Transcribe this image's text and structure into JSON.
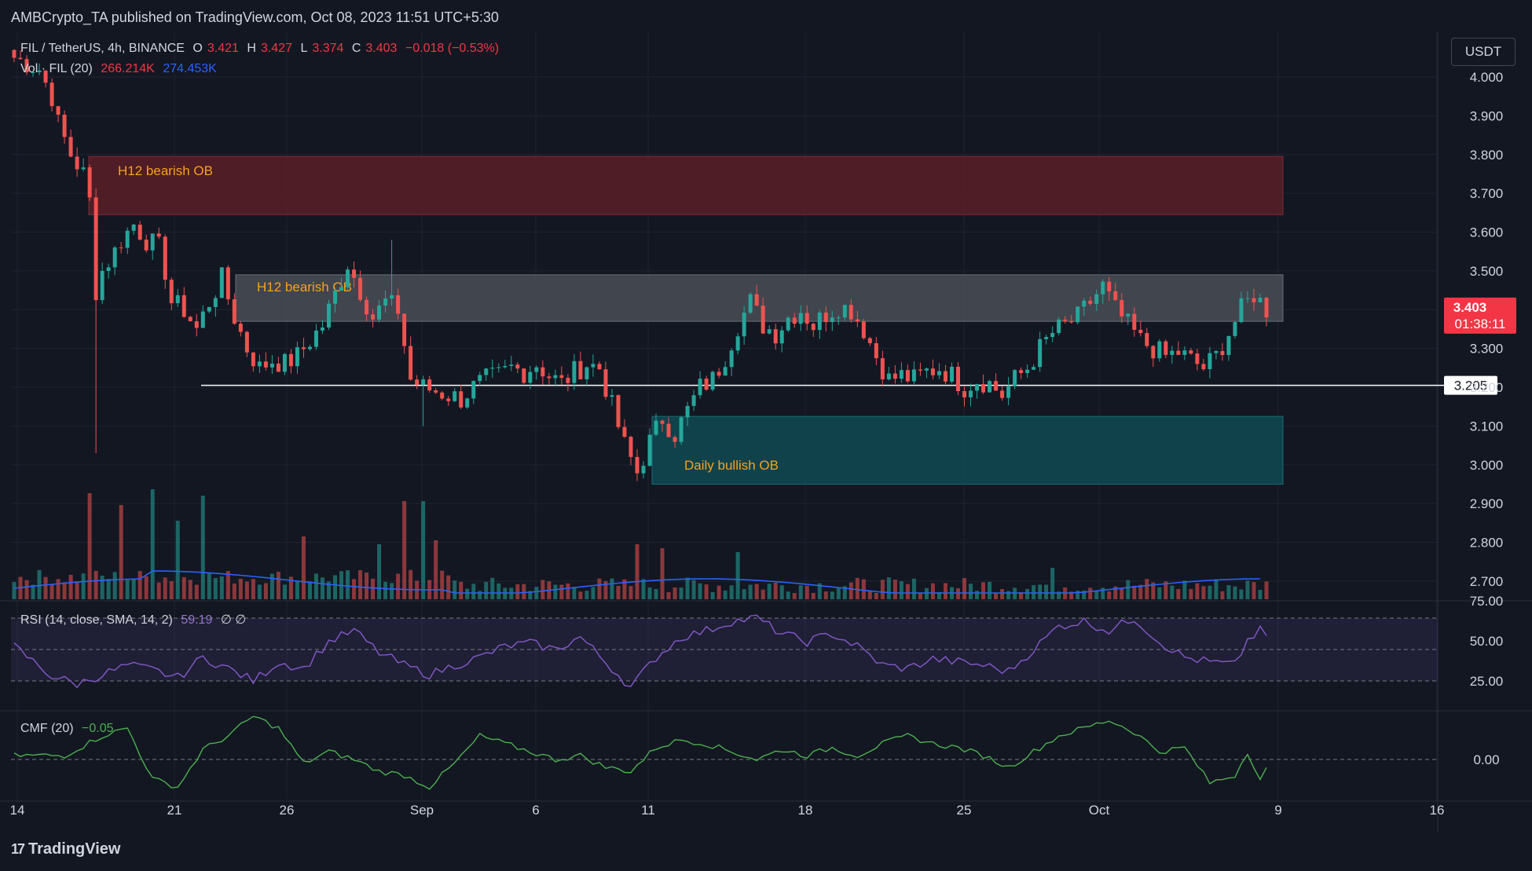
{
  "header": {
    "published": "AMBCrypto_TA published on TradingView.com, Oct 08, 2023 11:51 UTC+5:30"
  },
  "legend": {
    "symbol": "FIL / TetherUS, 4h, BINANCE",
    "o_label": "O",
    "o_value": "3.421",
    "h_label": "H",
    "h_value": "3.427",
    "l_label": "L",
    "l_value": "3.374",
    "c_label": "C",
    "c_value": "3.403",
    "change": "−0.018 (−0.53%)",
    "vol_label": "Vol · FIL (20)",
    "vol_value": "266.214K",
    "vol_ma": "274.453K",
    "rsi_label": "RSI (14, close, SMA, 14, 2)",
    "rsi_value": "59.19",
    "rsi_na": "∅  ∅",
    "cmf_label": "CMF (20)",
    "cmf_value": "−0.05"
  },
  "currency_button": "USDT",
  "footer": {
    "logo": "17",
    "brand": "TradingView"
  },
  "colors": {
    "bg": "#131722",
    "up": "#26a69a",
    "down": "#ef5350",
    "bearish_zone": "#5b1f27",
    "grey_zone": "#4a4d56",
    "bullish_zone": "#0f4a52",
    "zone_text": "#f7a21b",
    "rsi_line": "#7e57c2",
    "cmf_line": "#4caf50",
    "vol_ma": "#2962ff"
  },
  "chart_data": {
    "type": "candlestick",
    "symbol": "FIL / TetherUS",
    "timeframe": "4h",
    "exchange": "BINANCE",
    "price_axis": {
      "ticks": [
        "4.000",
        "3.900",
        "3.800",
        "3.700",
        "3.600",
        "3.500",
        "3.400",
        "3.300",
        "3.200",
        "3.100",
        "3.000",
        "2.900",
        "2.800",
        "2.700"
      ],
      "range": [
        2.65,
        4.08
      ]
    },
    "x_axis": {
      "ticks": [
        "14",
        "21",
        "26",
        "Sep",
        "6",
        "11",
        "18",
        "25",
        "Oct",
        "9",
        "16"
      ]
    },
    "last_price": {
      "value": "3.403",
      "countdown": "01:38:11"
    },
    "horizontal_line": {
      "value": 3.205,
      "label": "3.205"
    },
    "zones": [
      {
        "label": "H12 bearish OB",
        "top": 3.795,
        "bottom": 3.645,
        "type": "bearish"
      },
      {
        "label": "H12 bearish OB",
        "top": 3.49,
        "bottom": 3.37,
        "type": "grey"
      },
      {
        "label": "Daily bullish OB",
        "top": 3.125,
        "bottom": 2.95,
        "type": "bullish"
      }
    ],
    "price_path": [
      [
        0,
        4.05
      ],
      [
        4,
        4.02
      ],
      [
        6,
        3.95
      ],
      [
        7,
        3.88
      ],
      [
        9,
        3.8
      ],
      [
        11,
        3.75
      ],
      [
        12,
        3.68
      ],
      [
        13,
        3.45
      ],
      [
        14,
        3.5
      ],
      [
        16,
        3.55
      ],
      [
        17,
        3.58
      ],
      [
        19,
        3.62
      ],
      [
        21,
        3.58
      ],
      [
        23,
        3.56
      ],
      [
        24,
        3.5
      ],
      [
        25,
        3.42
      ],
      [
        27,
        3.4
      ],
      [
        29,
        3.35
      ],
      [
        31,
        3.42
      ],
      [
        33,
        3.48
      ],
      [
        35,
        3.38
      ],
      [
        37,
        3.3
      ],
      [
        39,
        3.25
      ],
      [
        41,
        3.27
      ],
      [
        43,
        3.26
      ],
      [
        45,
        3.28
      ],
      [
        47,
        3.32
      ],
      [
        49,
        3.36
      ],
      [
        51,
        3.44
      ],
      [
        53,
        3.52
      ],
      [
        55,
        3.45
      ],
      [
        57,
        3.38
      ],
      [
        59,
        3.42
      ],
      [
        61,
        3.4
      ],
      [
        63,
        3.22
      ],
      [
        65,
        3.2
      ],
      [
        67,
        3.19
      ],
      [
        69,
        3.18
      ],
      [
        71,
        3.17
      ],
      [
        73,
        3.2
      ],
      [
        75,
        3.22
      ],
      [
        77,
        3.23
      ],
      [
        79,
        3.25
      ],
      [
        81,
        3.24
      ],
      [
        83,
        3.26
      ],
      [
        85,
        3.23
      ],
      [
        87,
        3.21
      ],
      [
        89,
        3.24
      ],
      [
        91,
        3.26
      ],
      [
        93,
        3.25
      ],
      [
        95,
        3.15
      ],
      [
        97,
        3.05
      ],
      [
        99,
        2.98
      ],
      [
        101,
        3.06
      ],
      [
        103,
        3.12
      ],
      [
        105,
        3.08
      ],
      [
        107,
        3.14
      ],
      [
        109,
        3.2
      ],
      [
        111,
        3.22
      ],
      [
        113,
        3.28
      ],
      [
        115,
        3.36
      ],
      [
        117,
        3.42
      ],
      [
        119,
        3.36
      ],
      [
        121,
        3.34
      ],
      [
        123,
        3.38
      ],
      [
        125,
        3.4
      ],
      [
        127,
        3.36
      ],
      [
        129,
        3.39
      ],
      [
        131,
        3.41
      ],
      [
        133,
        3.4
      ],
      [
        135,
        3.35
      ],
      [
        137,
        3.28
      ],
      [
        139,
        3.22
      ],
      [
        141,
        3.23
      ],
      [
        143,
        3.22
      ],
      [
        145,
        3.24
      ],
      [
        147,
        3.25
      ],
      [
        149,
        3.23
      ],
      [
        151,
        3.2
      ],
      [
        153,
        3.22
      ],
      [
        155,
        3.21
      ],
      [
        157,
        3.18
      ],
      [
        159,
        3.22
      ],
      [
        161,
        3.25
      ],
      [
        163,
        3.3
      ],
      [
        165,
        3.34
      ],
      [
        167,
        3.36
      ],
      [
        169,
        3.38
      ],
      [
        171,
        3.42
      ],
      [
        173,
        3.46
      ],
      [
        175,
        3.4
      ],
      [
        177,
        3.36
      ],
      [
        179,
        3.32
      ],
      [
        181,
        3.3
      ],
      [
        183,
        3.28
      ],
      [
        185,
        3.29
      ],
      [
        187,
        3.27
      ],
      [
        189,
        3.25
      ],
      [
        191,
        3.28
      ],
      [
        193,
        3.34
      ],
      [
        195,
        3.4
      ],
      [
        197,
        3.44
      ],
      [
        198,
        3.42
      ],
      [
        199,
        3.4
      ]
    ],
    "volume": {
      "value": "266.214K",
      "ma": "274.453K"
    },
    "rsi": {
      "params": "14, close, SMA, 14, 2",
      "value": 59.19,
      "ticks": [
        "75.00",
        "50.00",
        "25.00"
      ],
      "path": [
        [
          0,
          52
        ],
        [
          6,
          33
        ],
        [
          10,
          28
        ],
        [
          14,
          34
        ],
        [
          18,
          40
        ],
        [
          22,
          37
        ],
        [
          26,
          32
        ],
        [
          30,
          45
        ],
        [
          34,
          38
        ],
        [
          38,
          30
        ],
        [
          42,
          42
        ],
        [
          46,
          38
        ],
        [
          50,
          55
        ],
        [
          54,
          62
        ],
        [
          58,
          48
        ],
        [
          62,
          40
        ],
        [
          66,
          34
        ],
        [
          70,
          40
        ],
        [
          74,
          45
        ],
        [
          78,
          52
        ],
        [
          82,
          54
        ],
        [
          86,
          50
        ],
        [
          90,
          58
        ],
        [
          94,
          42
        ],
        [
          98,
          26
        ],
        [
          102,
          45
        ],
        [
          106,
          58
        ],
        [
          110,
          62
        ],
        [
          114,
          68
        ],
        [
          118,
          70
        ],
        [
          122,
          60
        ],
        [
          126,
          55
        ],
        [
          130,
          60
        ],
        [
          134,
          52
        ],
        [
          138,
          40
        ],
        [
          142,
          38
        ],
        [
          146,
          44
        ],
        [
          150,
          42
        ],
        [
          154,
          40
        ],
        [
          158,
          36
        ],
        [
          162,
          50
        ],
        [
          166,
          65
        ],
        [
          170,
          68
        ],
        [
          174,
          62
        ],
        [
          178,
          70
        ],
        [
          182,
          55
        ],
        [
          186,
          45
        ],
        [
          190,
          42
        ],
        [
          194,
          40
        ],
        [
          196,
          56
        ],
        [
          198,
          62
        ],
        [
          199,
          59
        ]
      ]
    },
    "cmf": {
      "period": "20",
      "value": -0.05,
      "ticks": [
        "0.00"
      ],
      "path": [
        [
          0,
          0.02
        ],
        [
          8,
          0.02
        ],
        [
          14,
          0.12
        ],
        [
          18,
          0.16
        ],
        [
          22,
          -0.1
        ],
        [
          26,
          -0.14
        ],
        [
          30,
          0.05
        ],
        [
          34,
          0.12
        ],
        [
          38,
          0.22
        ],
        [
          42,
          0.16
        ],
        [
          46,
          -0.02
        ],
        [
          50,
          0.04
        ],
        [
          54,
          0.0
        ],
        [
          58,
          -0.06
        ],
        [
          62,
          -0.08
        ],
        [
          66,
          -0.14
        ],
        [
          70,
          -0.02
        ],
        [
          74,
          0.12
        ],
        [
          78,
          0.08
        ],
        [
          82,
          0.04
        ],
        [
          86,
          0.0
        ],
        [
          90,
          0.02
        ],
        [
          94,
          -0.04
        ],
        [
          98,
          -0.06
        ],
        [
          102,
          0.06
        ],
        [
          106,
          0.1
        ],
        [
          110,
          0.08
        ],
        [
          114,
          0.04
        ],
        [
          118,
          0.0
        ],
        [
          122,
          0.05
        ],
        [
          126,
          0.02
        ],
        [
          130,
          0.06
        ],
        [
          134,
          0.02
        ],
        [
          138,
          0.08
        ],
        [
          142,
          0.12
        ],
        [
          146,
          0.08
        ],
        [
          150,
          0.06
        ],
        [
          154,
          0.02
        ],
        [
          158,
          -0.04
        ],
        [
          162,
          0.04
        ],
        [
          166,
          0.12
        ],
        [
          170,
          0.16
        ],
        [
          174,
          0.2
        ],
        [
          178,
          0.14
        ],
        [
          182,
          0.04
        ],
        [
          186,
          0.06
        ],
        [
          190,
          -0.12
        ],
        [
          194,
          -0.08
        ],
        [
          196,
          0.04
        ],
        [
          198,
          -0.1
        ],
        [
          199,
          -0.05
        ]
      ]
    }
  }
}
